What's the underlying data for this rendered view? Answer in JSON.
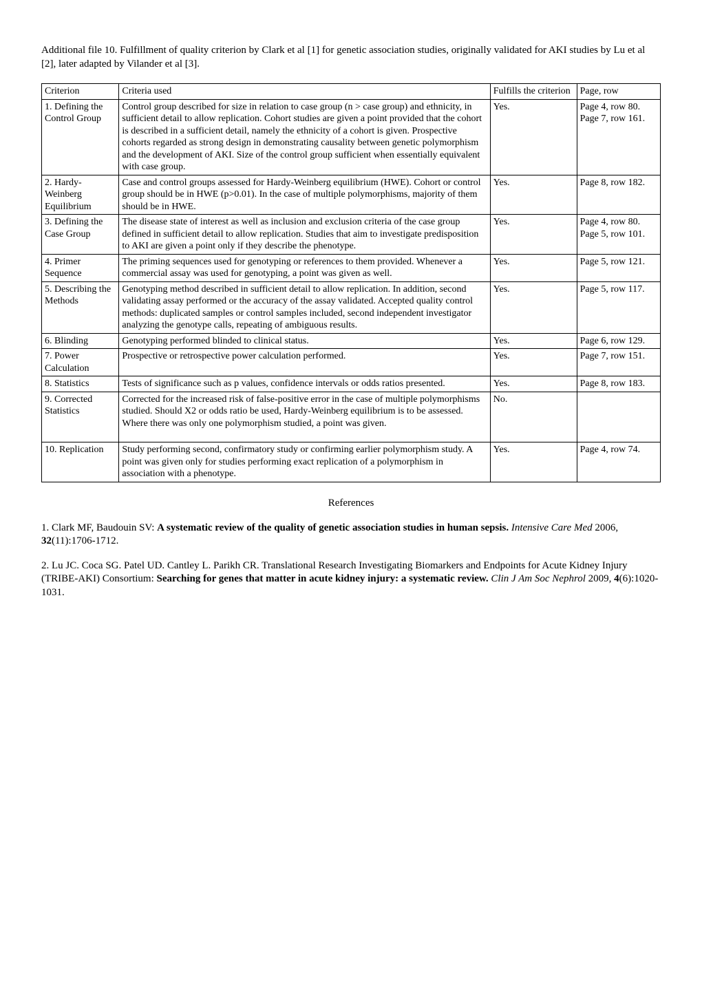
{
  "intro": "Additional file 10. Fulfillment of quality criterion by Clark et al  [1] for genetic association studies, originally validated for AKI studies by Lu et al  [2], later adapted by Vilander et al  [3].",
  "headers": {
    "criterion": "Criterion",
    "criteria_used": "Criteria used",
    "fulfills": "Fulfills the criterion",
    "page_row": "Page, row"
  },
  "rows": [
    {
      "criterion": "1. Defining the Control Group",
      "criteria_used": "Control group described for size in relation to case group (n > case group) and ethnicity, in sufficient detail to allow replication. Cohort studies are given a point provided that the cohort is described in a sufficient detail, namely the ethnicity of a cohort is given. Prospective cohorts regarded as strong design in demonstrating causality between genetic polymorphism and the development of AKI. Size of the control group sufficient when essentially equivalent with case group.",
      "fulfills": "Yes.",
      "page_row": "Page 4, row 80. Page 7, row 161."
    },
    {
      "criterion": "2. Hardy-Weinberg Equilibrium",
      "criteria_used": "Case and control groups assessed for Hardy-Weinberg equilibrium (HWE). Cohort or control group should be in HWE (p>0.01). In the case of multiple polymorphisms, majority of them should be in HWE.",
      "fulfills": "Yes.",
      "page_row": "Page 8, row 182."
    },
    {
      "criterion": "3. Defining the Case Group",
      "criteria_used": "The disease state of interest as well as inclusion and exclusion criteria of the case group defined in sufficient detail to allow replication. Studies that aim to investigate predisposition to AKI are given a point only if they describe the phenotype.",
      "fulfills": "Yes.",
      "page_row": "Page 4, row 80. Page 5, row 101."
    },
    {
      "criterion": "4. Primer Sequence",
      "criteria_used": "The priming sequences used for genotyping or references to them provided. Whenever a commercial assay was used for genotyping, a point was given as well.",
      "fulfills": "Yes.",
      "page_row": "Page 5, row 121."
    },
    {
      "criterion": "5. Describing the Methods",
      "criteria_used": "Genotyping method described in sufficient detail to allow replication. In addition, second validating assay performed or the accuracy of the assay validated. Accepted quality control methods: duplicated samples or control samples included, second independent investigator analyzing the genotype calls, repeating of ambiguous results.",
      "fulfills": "Yes.",
      "page_row": "Page 5, row 117."
    },
    {
      "criterion": "6. Blinding",
      "criteria_used": "Genotyping performed blinded to clinical status.",
      "fulfills": "Yes.",
      "page_row": "Page 6, row 129."
    },
    {
      "criterion": "7. Power Calculation",
      "criteria_used": "Prospective or retrospective power calculation performed.",
      "fulfills": "Yes.",
      "page_row": "Page 7, row 151."
    },
    {
      "criterion": "8. Statistics",
      "criteria_used": "Tests of significance such as p values, confidence intervals or odds ratios presented.",
      "fulfills": "Yes.",
      "page_row": "Page 8, row 183."
    },
    {
      "criterion": "9. Corrected Statistics",
      "criteria_used": "Corrected for the increased risk of false-positive error in the case of multiple polymorphisms studied. Should X2 or odds ratio be used, Hardy-Weinberg equilibrium is to be assessed. Where there was only one polymorphism studied, a point was given.",
      "fulfills": "No.",
      "page_row": ""
    },
    {
      "criterion": "10. Replication",
      "criteria_used": "Study performing second, confirmatory study or confirming earlier polymorphism study. A point was given only for studies performing exact replication of a polymorphism in association with a phenotype.",
      "fulfills": "Yes.",
      "page_row": "Page 4, row 74."
    }
  ],
  "references_heading": "References",
  "references": [
    {
      "prefix": "1. Clark MF, Baudouin SV: ",
      "title_bold": "A systematic review of the quality of genetic association studies in human sepsis.",
      "journal_ital": " Intensive Care Med ",
      "rest": "2006, ",
      "vol_bold": "32",
      "tail": "(11):1706-1712."
    },
    {
      "prefix": "2. Lu JC. Coca SG. Patel UD. Cantley L. Parikh CR. Translational Research Investigating Biomarkers and Endpoints for Acute Kidney Injury (TRIBE-AKI) Consortium: ",
      "title_bold": "Searching for genes that matter in acute kidney injury: a systematic review.",
      "journal_ital": " Clin J Am Soc Nephrol ",
      "rest": "2009, ",
      "vol_bold": "4",
      "tail": "(6):1020-1031."
    }
  ]
}
